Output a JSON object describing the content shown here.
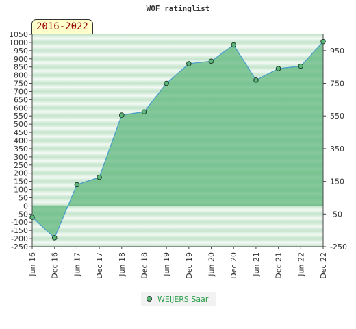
{
  "chart_data": {
    "type": "area",
    "title": "WOF ratinglist",
    "period_label": "2016-2022",
    "categories": [
      "Jun 16",
      "Dec 16",
      "Jun 17",
      "Dec 17",
      "Jun 18",
      "Dec 18",
      "Jun 19",
      "Dec 19",
      "Jun 20",
      "Dec 20",
      "Jun 21",
      "Dec 21",
      "Jun 22",
      "Dec 22"
    ],
    "series": [
      {
        "name": "WEIJERS Saar",
        "values": [
          -70,
          -195,
          130,
          175,
          555,
          575,
          750,
          870,
          885,
          985,
          770,
          840,
          855,
          1005
        ]
      }
    ],
    "ylim": [
      -250,
      1050
    ],
    "y_ticks_left": [
      1050,
      1000,
      950,
      900,
      850,
      800,
      750,
      700,
      650,
      600,
      550,
      500,
      450,
      400,
      350,
      300,
      250,
      200,
      150,
      100,
      50,
      0,
      -50,
      -100,
      -150,
      -200,
      -250
    ],
    "y_ticks_right": [
      950,
      750,
      550,
      350,
      150,
      -50,
      -250
    ],
    "colors": {
      "fill": "#5cb57a",
      "line": "#4a9fd0",
      "marker": "#5db67a",
      "marker_stroke": "#1f3d2a",
      "legend_text": "#2e9e4c"
    },
    "grid": true,
    "legend_position": "bottom-center"
  }
}
